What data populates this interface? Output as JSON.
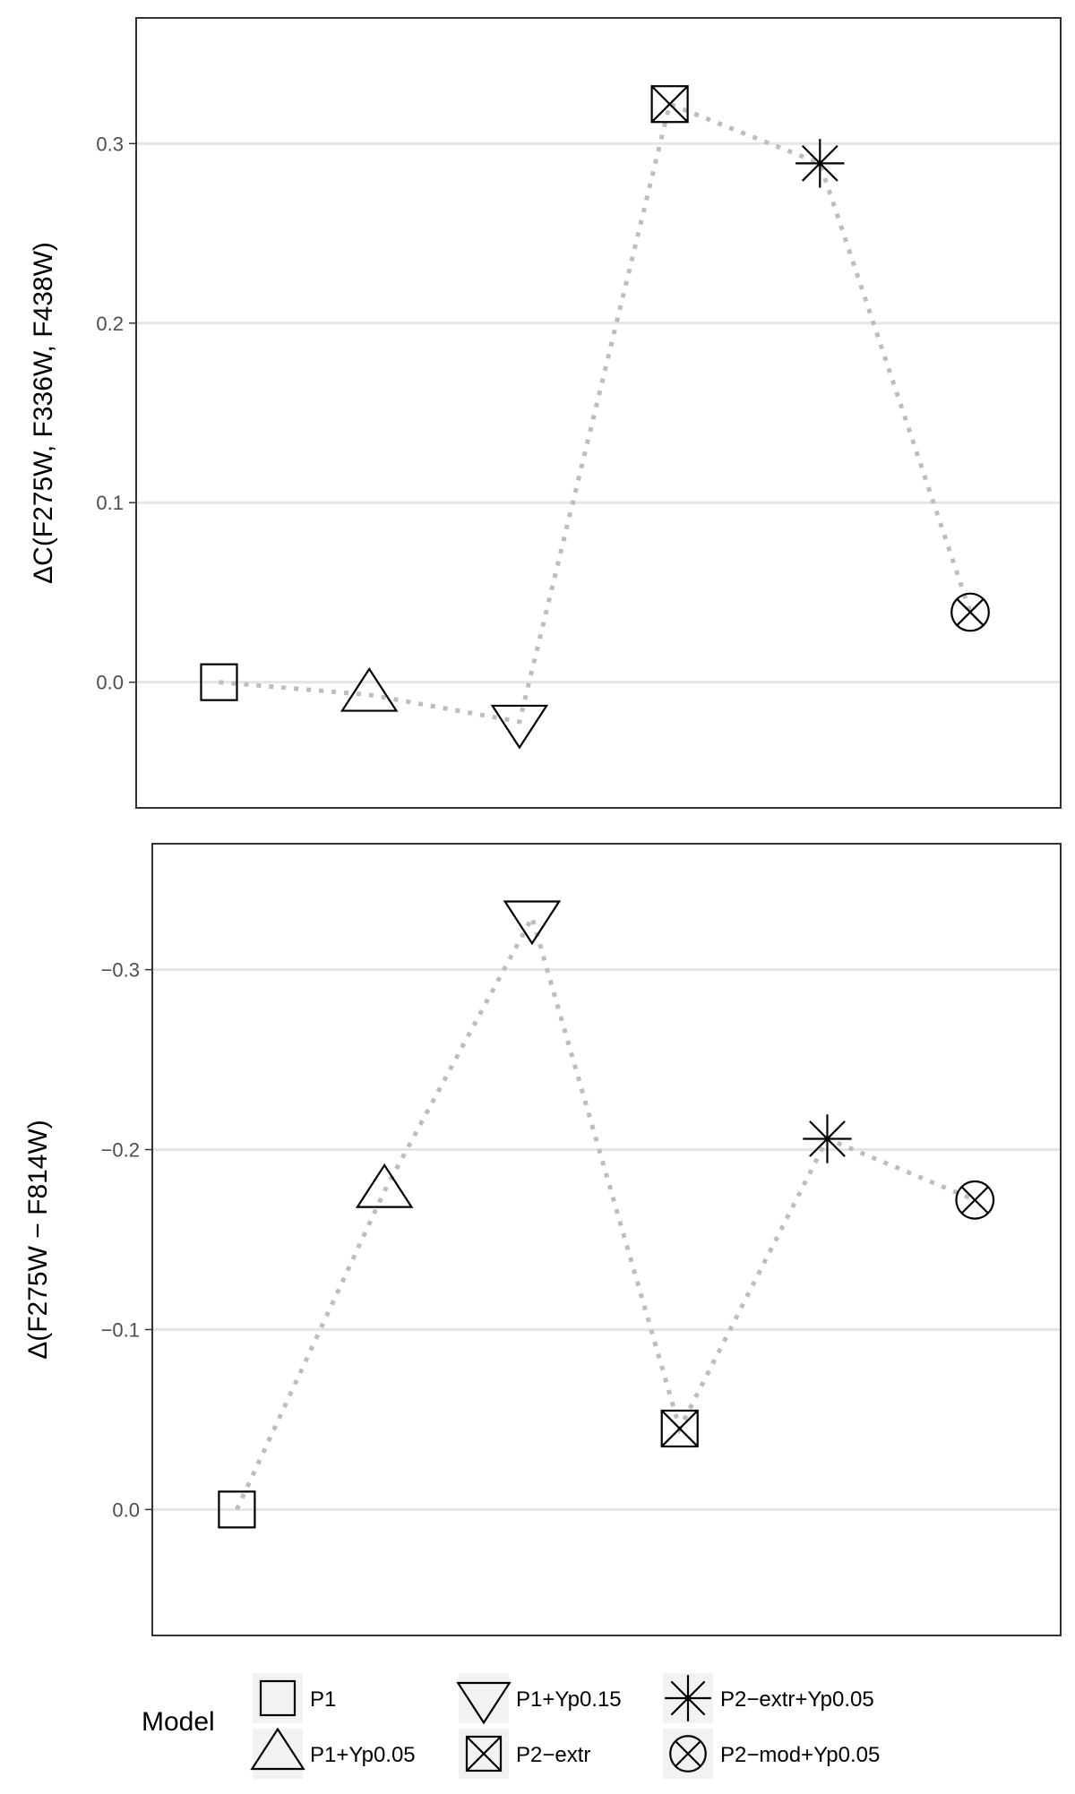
{
  "chart_data": [
    {
      "type": "scatter",
      "ylabel": "ΔC(F275W, F336W, F438W)",
      "ylim": [
        -0.07,
        0.37
      ],
      "reversed": false,
      "yticks": [
        0.0,
        0.1,
        0.2,
        0.3
      ],
      "ytick_labels": [
        "0.0",
        "0.1",
        "0.2",
        "0.3"
      ],
      "grid": true,
      "line_style": "dotted",
      "points": [
        {
          "model": "P1",
          "y": 0.0
        },
        {
          "model": "P1+Yp0.05",
          "y": -0.007
        },
        {
          "model": "P1+Yp0.15",
          "y": -0.022
        },
        {
          "model": "P2−extr",
          "y": 0.322
        },
        {
          "model": "P2−extr+Yp0.05",
          "y": 0.289
        },
        {
          "model": "P2−mod+Yp0.05",
          "y": 0.039
        }
      ]
    },
    {
      "type": "scatter",
      "ylabel": "Δ(F275W − F814W)",
      "ylim": [
        0.07,
        -0.37
      ],
      "reversed": true,
      "yticks": [
        0.0,
        -0.1,
        -0.2,
        -0.3
      ],
      "ytick_labels": [
        "0.0",
        "−0.1",
        "−0.2",
        "−0.3"
      ],
      "grid": true,
      "line_style": "dotted",
      "points": [
        {
          "model": "P1",
          "y": 0.0
        },
        {
          "model": "P1+Yp0.05",
          "y": -0.177
        },
        {
          "model": "P1+Yp0.15",
          "y": -0.329
        },
        {
          "model": "P2−extr",
          "y": -0.045
        },
        {
          "model": "P2−extr+Yp0.05",
          "y": -0.206
        },
        {
          "model": "P2−mod+Yp0.05",
          "y": -0.172
        }
      ]
    }
  ],
  "legend": {
    "title": "Model",
    "placement": "bottom",
    "items": [
      {
        "label": "P1",
        "shape": "square-icon"
      },
      {
        "label": "P1+Yp0.05",
        "shape": "triangle-up-icon"
      },
      {
        "label": "P1+Yp0.15",
        "shape": "triangle-down-icon"
      },
      {
        "label": "P2−extr",
        "shape": "square-cross-icon"
      },
      {
        "label": "P2−extr+Yp0.05",
        "shape": "asterisk-icon"
      },
      {
        "label": "P2−mod+Yp0.05",
        "shape": "circle-cross-icon"
      }
    ]
  },
  "colors": {
    "grid": "#e5e5e5",
    "connector": "#bdbdbd",
    "marker": "#000000",
    "panel_border": "#333333",
    "legend_key_bg": "#f2f2f2"
  }
}
